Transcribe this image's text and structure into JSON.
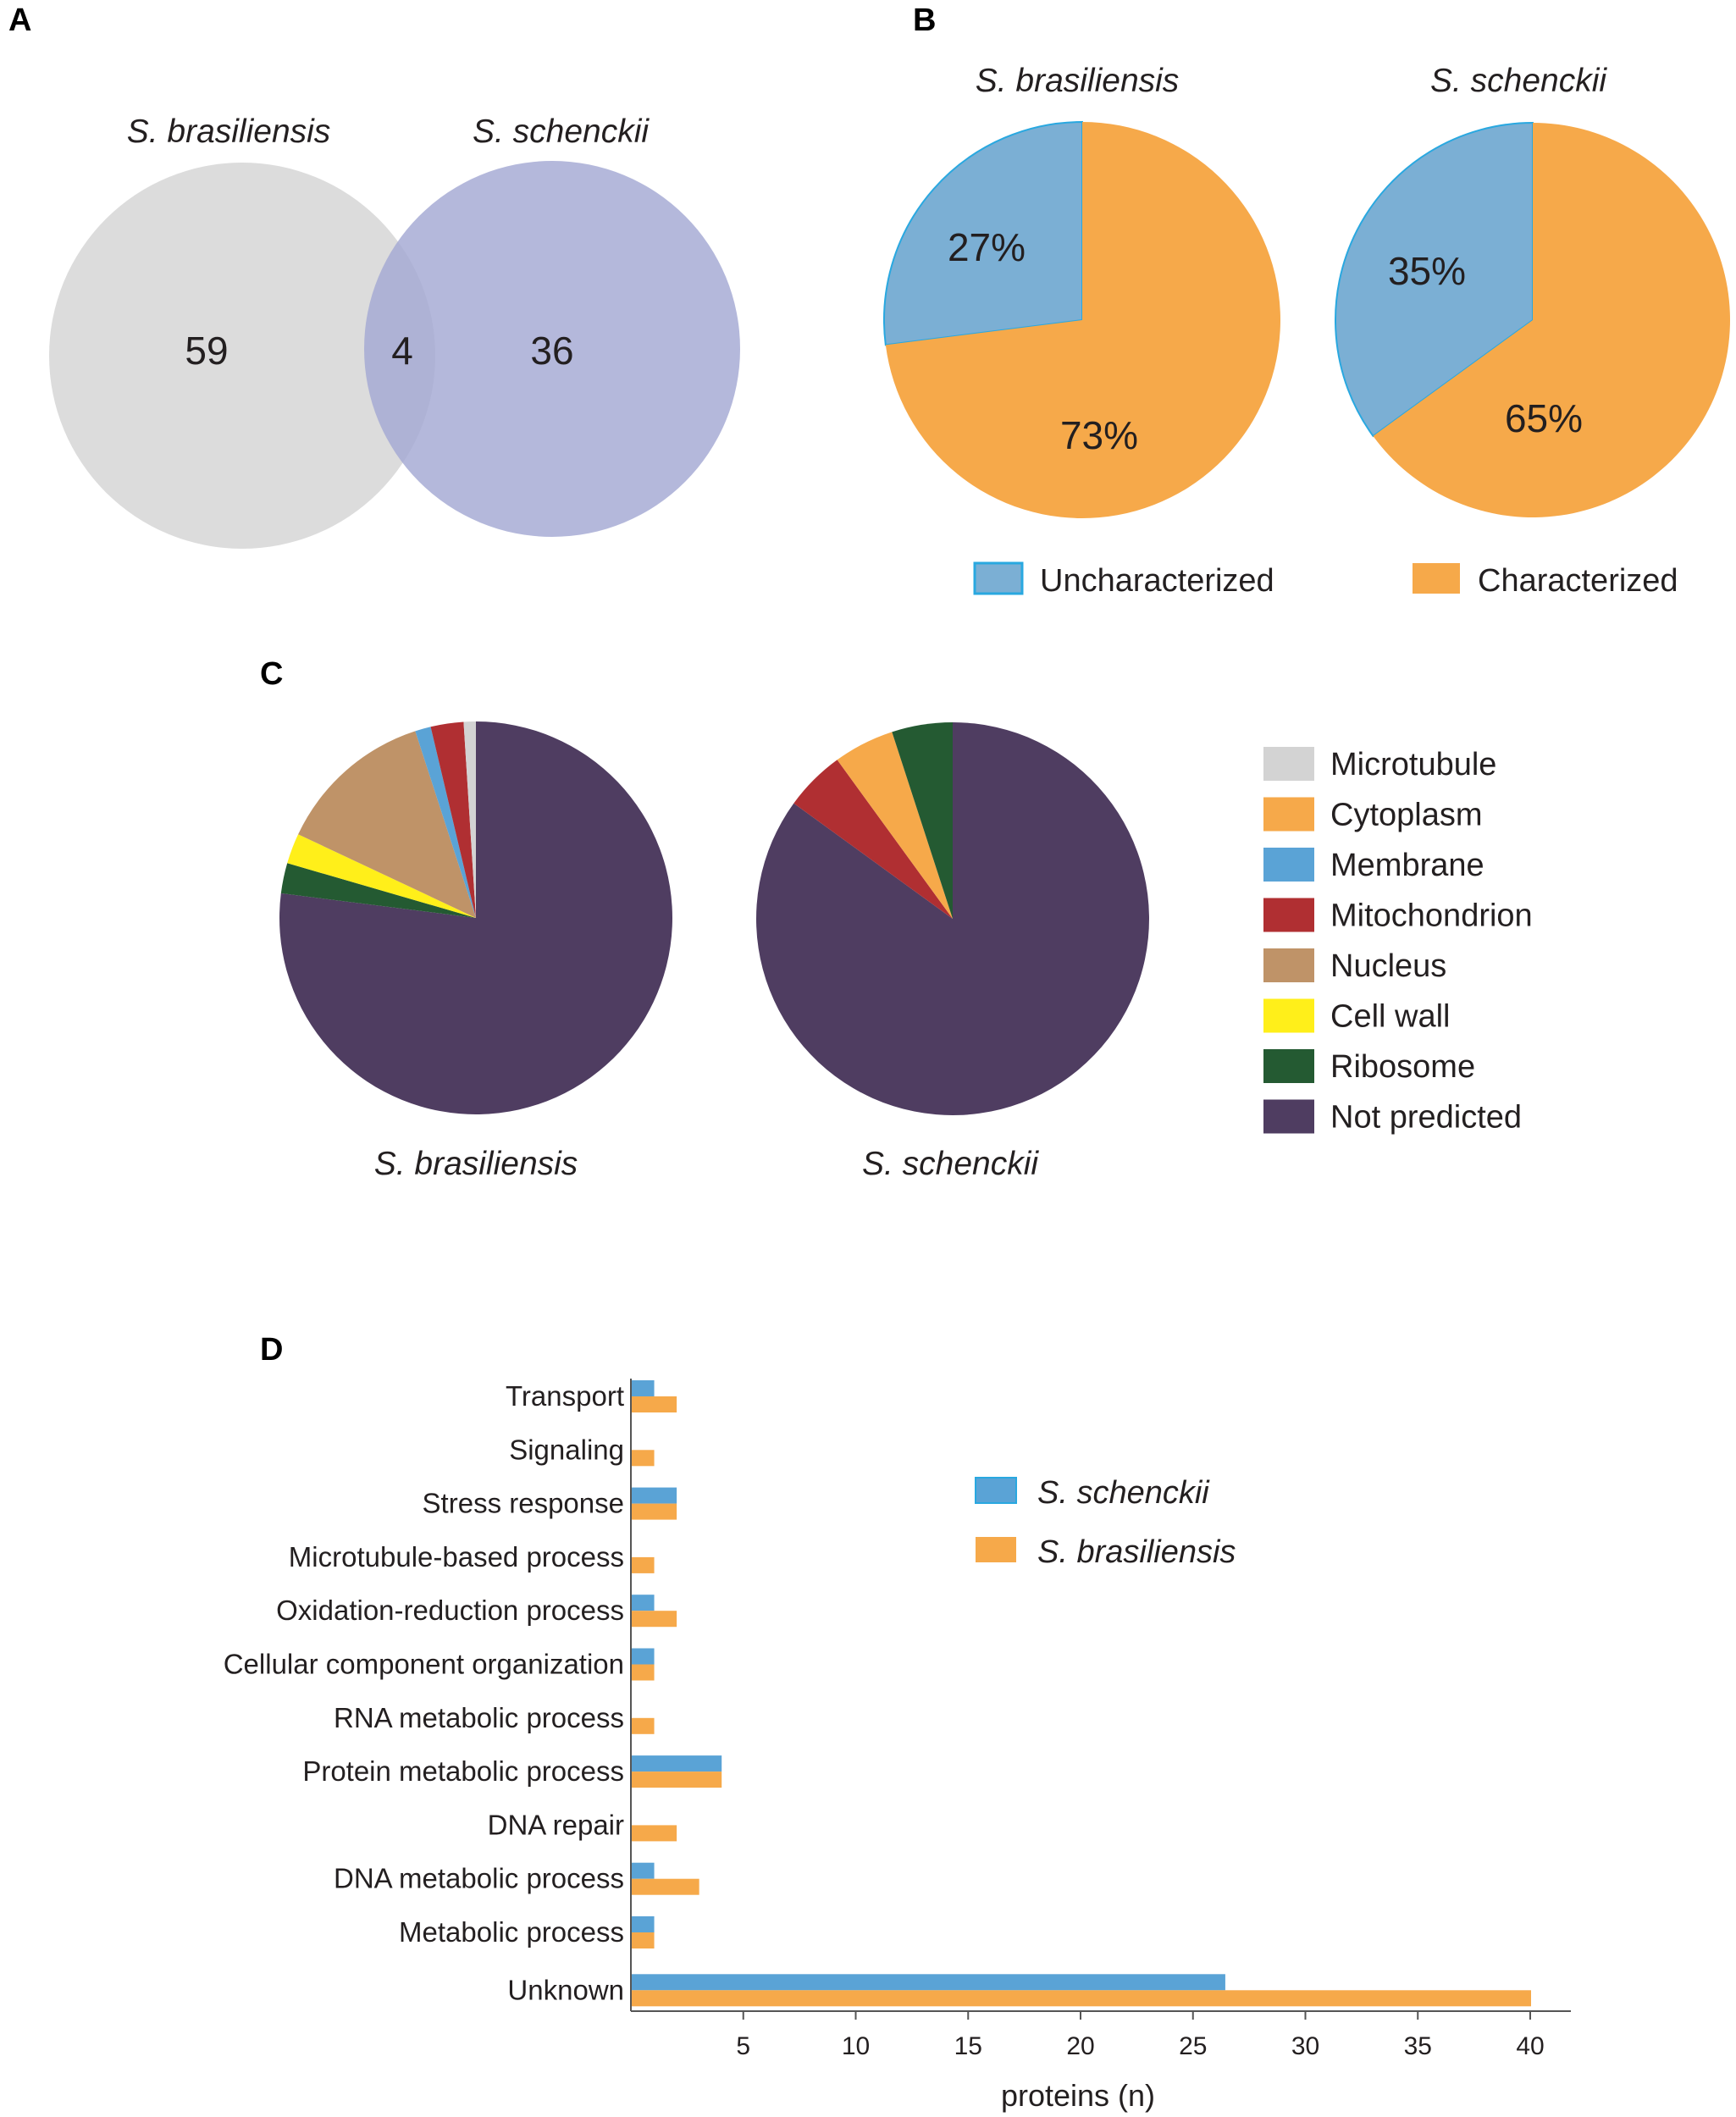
{
  "colors": {
    "venn_left": "#dcdcdc",
    "venn_right": "#a3a8d3",
    "uncharacterized": "#7bafd4",
    "uncharacterized_edge": "#29a8e0",
    "characterized": "#f6a94a",
    "schenckii_bar": "#5aa3d6",
    "brasiliensis_bar": "#f6a94a",
    "axis": "#555555"
  },
  "panel_labels": [
    "A",
    "B",
    "C",
    "D"
  ],
  "venn": {
    "left_label": "S. brasiliensis",
    "right_label": "S. schenckii",
    "left_only": "59",
    "overlap": "4",
    "right_only": "36"
  },
  "panel_b": {
    "pies": [
      {
        "species": "S. brasiliensis",
        "slices": [
          {
            "name": "Uncharacterized",
            "value": 27,
            "label": "27%"
          },
          {
            "name": "Characterized",
            "value": 73,
            "label": "73%"
          }
        ]
      },
      {
        "species": "S. schenckii",
        "slices": [
          {
            "name": "Uncharacterized",
            "value": 35,
            "label": "35%"
          },
          {
            "name": "Characterized",
            "value": 65,
            "label": "65%"
          }
        ]
      }
    ],
    "legend": [
      "Uncharacterized",
      "Characterized"
    ]
  },
  "panel_c": {
    "categories": [
      {
        "name": "Microtubule",
        "color": "#d3d3d3"
      },
      {
        "name": "Cytoplasm",
        "color": "#f6a94a"
      },
      {
        "name": "Membrane",
        "color": "#5aa3d6"
      },
      {
        "name": "Mitochondrion",
        "color": "#b02f32"
      },
      {
        "name": "Nucleus",
        "color": "#bf9368"
      },
      {
        "name": "Cell wall",
        "color": "#ffef1a"
      },
      {
        "name": "Ribosome",
        "color": "#245a32"
      },
      {
        "name": "Not predicted",
        "color": "#4f3d61"
      }
    ],
    "pies": [
      {
        "species": "S. brasiliensis",
        "values": {
          "Microtubule": 1,
          "Cytoplasm": 0,
          "Membrane": 1.3,
          "Mitochondrion": 2.7,
          "Nucleus": 13,
          "Cell wall": 2.5,
          "Ribosome": 2.5,
          "Not predicted": 77
        }
      },
      {
        "species": "S. schenckii",
        "values": {
          "Microtubule": 0,
          "Cytoplasm": 5,
          "Membrane": 0,
          "Mitochondrion": 5,
          "Nucleus": 0,
          "Cell wall": 0,
          "Ribosome": 5,
          "Not predicted": 85
        }
      }
    ]
  },
  "chart_data": {
    "type": "bar",
    "orientation": "horizontal",
    "categories": [
      "Transport",
      "Signaling",
      "Stress response",
      "Microtubule-based process",
      "Oxidation-reduction process",
      "Cellular component organization",
      "RNA metabolic process",
      "Protein metabolic process",
      "DNA repair",
      "DNA metabolic process",
      "Metabolic process",
      "Unknown"
    ],
    "series": [
      {
        "name": "S. schenckii",
        "values": [
          1,
          0,
          2,
          0,
          1,
          1,
          0,
          4,
          0,
          1,
          1,
          26
        ]
      },
      {
        "name": "S. brasiliensis",
        "values": [
          2,
          1,
          2,
          1,
          2,
          1,
          1,
          4,
          2,
          3,
          1,
          40
        ]
      }
    ],
    "xticks": [
      "5",
      "10",
      "15",
      "20",
      "25",
      "30",
      "35",
      "40"
    ],
    "xtick_values": [
      5,
      10,
      15,
      20,
      25,
      30,
      35,
      40
    ],
    "xlabel": "proteins (n)",
    "ylabel": "",
    "xlim": [
      0,
      41
    ],
    "legend_position": "top-right"
  }
}
